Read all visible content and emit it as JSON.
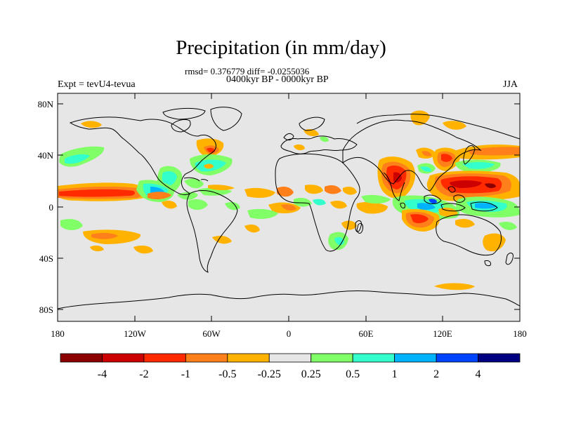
{
  "title": "Precipitation (in mm/day)",
  "stats": "rmsd= 0.376779 diff= -0.0255036",
  "period": "0400kyr BP - 0000kyr BP",
  "experiment": "Expt = tevU4-tevua",
  "season": "JJA",
  "y_ticks": [
    "80N",
    "40N",
    "0",
    "40S",
    "80S"
  ],
  "x_ticks": [
    "180",
    "120W",
    "60W",
    "0",
    "60E",
    "120E",
    "180"
  ],
  "colorbar": {
    "labels": [
      "-4",
      "-2",
      "-1",
      "-0.5",
      "-0.25",
      "0.25",
      "0.5",
      "1",
      "2",
      "4"
    ],
    "colors": [
      "#8b0000",
      "#cc0000",
      "#ff2a00",
      "#ff7f1a",
      "#ffb300",
      "#e6e6e6",
      "#80ff66",
      "#33ffcc",
      "#00b3ff",
      "#0044ff",
      "#000080"
    ]
  },
  "colors": {
    "background": "#e6e6e6",
    "coastline": "#000000"
  }
}
